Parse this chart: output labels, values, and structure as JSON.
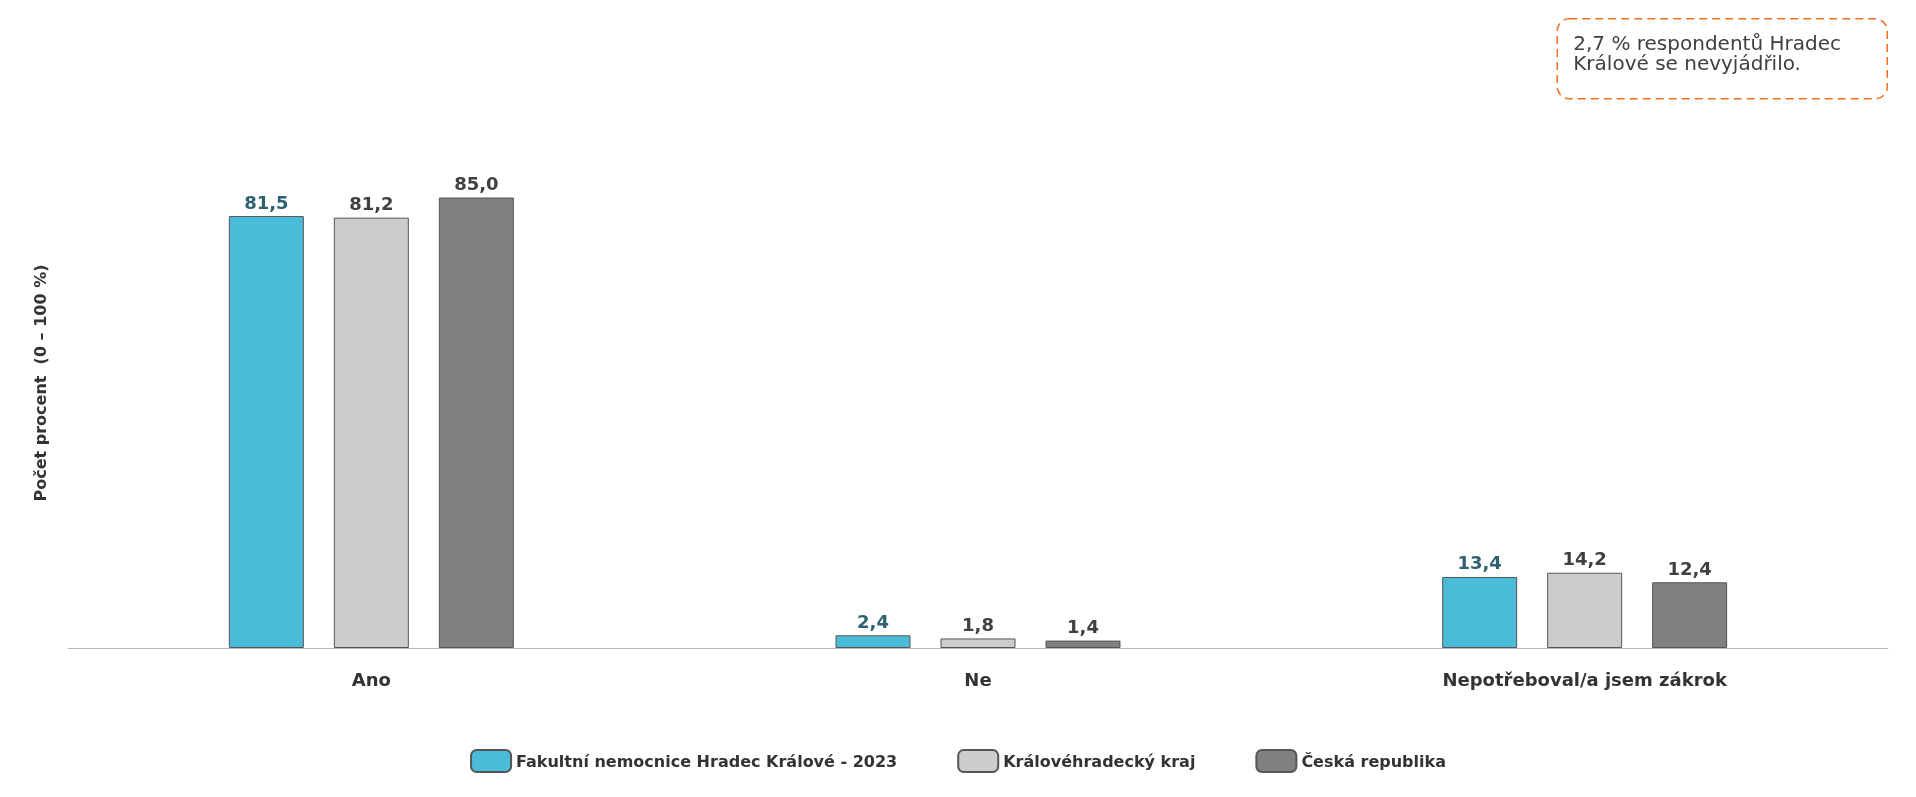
{
  "chart_data": {
    "type": "bar",
    "ylabel": "Počet procent  (0 – 100 %)",
    "categories": [
      "Ano",
      "Ne",
      "Nepotřeboval/a jsem zákrok"
    ],
    "series": [
      {
        "name": "Fakultní nemocnice Hradec Králové - 2023",
        "color": "#4bbcd8",
        "values": [
          81.5,
          2.4,
          13.4
        ],
        "value_labels": [
          "81,5",
          "2,4",
          "13,4"
        ]
      },
      {
        "name": "Královéhradecký kraj",
        "color": "#cccccc",
        "values": [
          81.2,
          1.8,
          14.2
        ],
        "value_labels": [
          "81,2",
          "1,8",
          "14,2"
        ]
      },
      {
        "name": "Česká republika",
        "color": "#808080",
        "values": [
          85.0,
          1.4,
          12.4
        ],
        "value_labels": [
          "85,0",
          "1,4",
          "12,4"
        ]
      }
    ],
    "legend": "bottom",
    "grid": false,
    "annotations": [
      "2,7 % respondentů Hradec Králové se nevyjádřilo."
    ]
  }
}
